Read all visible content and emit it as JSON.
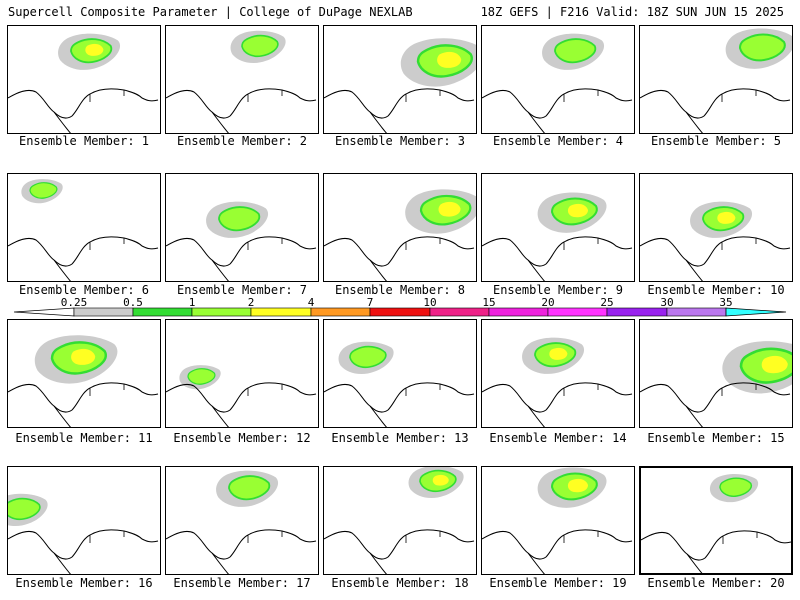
{
  "header": {
    "left": "Supercell Composite Parameter | College of DuPage NEXLAB",
    "right": "18Z GEFS | F216 Valid: 18Z SUN JUN 15 2025"
  },
  "colorbar": {
    "ticks": [
      "0.25",
      "0.5",
      "1",
      "2",
      "4",
      "7",
      "10",
      "15",
      "20",
      "25",
      "30",
      "35"
    ],
    "colors": [
      "#cccccc",
      "#33dd33",
      "#99ff33",
      "#ffff22",
      "#ff9922",
      "#ee1111",
      "#ee2288",
      "#ee22dd",
      "#ff33ff",
      "#9922ee",
      "#bb77ee",
      "#33ffff"
    ]
  },
  "panels": [
    {
      "label": "Ensemble Member: 1"
    },
    {
      "label": "Ensemble Member: 2"
    },
    {
      "label": "Ensemble Member: 3"
    },
    {
      "label": "Ensemble Member: 4"
    },
    {
      "label": "Ensemble Member: 5"
    },
    {
      "label": "Ensemble Member: 6"
    },
    {
      "label": "Ensemble Member: 7"
    },
    {
      "label": "Ensemble Member: 8"
    },
    {
      "label": "Ensemble Member: 9"
    },
    {
      "label": "Ensemble Member: 10"
    },
    {
      "label": "Ensemble Member: 11"
    },
    {
      "label": "Ensemble Member: 12"
    },
    {
      "label": "Ensemble Member: 13"
    },
    {
      "label": "Ensemble Member: 14"
    },
    {
      "label": "Ensemble Member: 15"
    },
    {
      "label": "Ensemble Member: 16"
    },
    {
      "label": "Ensemble Member: 17"
    },
    {
      "label": "Ensemble Member: 18"
    },
    {
      "label": "Ensemble Member: 19"
    },
    {
      "label": "Ensemble Member: 20",
      "selected": true
    }
  ]
}
